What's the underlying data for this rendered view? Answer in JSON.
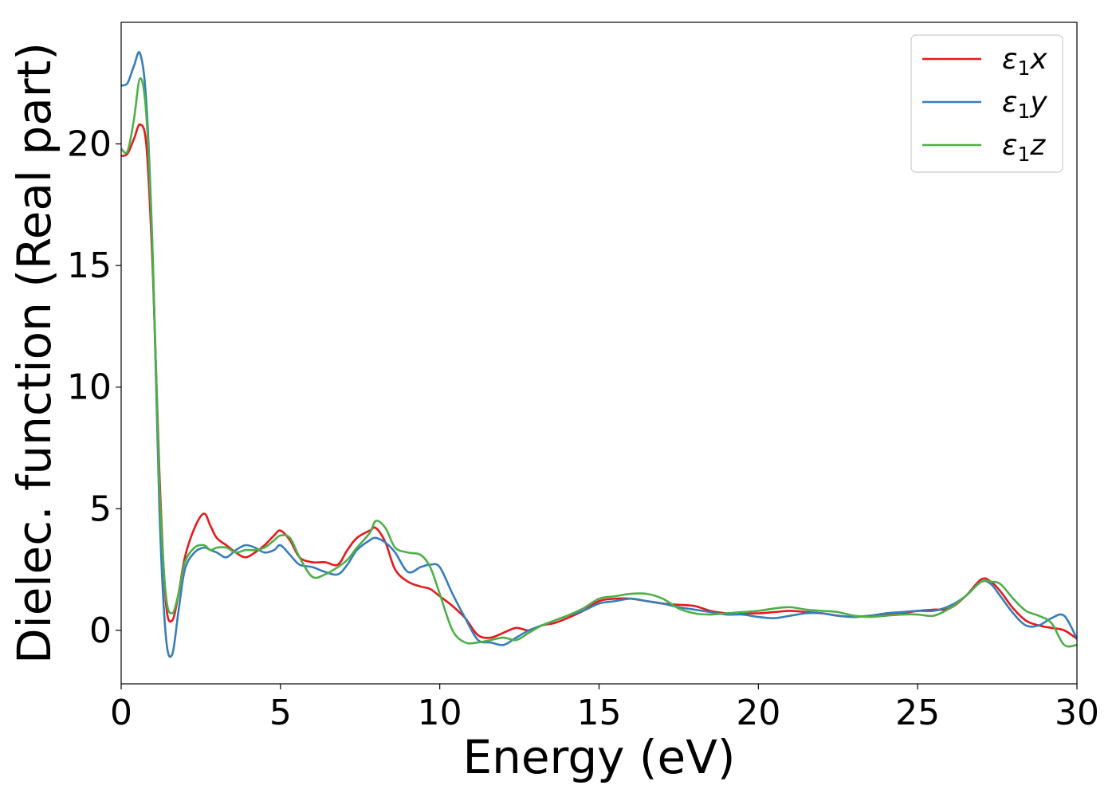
{
  "chart_data": {
    "type": "line",
    "title": "",
    "xlabel": "Energy (eV)",
    "ylabel": "Dielec. function (Real part)",
    "xlim": [
      0,
      30
    ],
    "ylim": [
      -2.2,
      25
    ],
    "xticks": [
      0,
      5,
      10,
      15,
      20,
      25,
      30
    ],
    "xtick_labels": [
      "0",
      "5",
      "10",
      "15",
      "20",
      "25",
      "30"
    ],
    "yticks": [
      0,
      5,
      10,
      15,
      20
    ],
    "ytick_labels": [
      "0",
      "5",
      "10",
      "15",
      "20"
    ],
    "grid": false,
    "legend_position": "top-right",
    "series": [
      {
        "name": "ε₁x",
        "legend_main": "ε",
        "legend_sub": "1",
        "legend_var": "x",
        "color": "#e41a1c",
        "x": [
          0,
          0.2,
          0.4,
          0.6,
          0.8,
          1.0,
          1.2,
          1.4,
          1.6,
          1.8,
          2.0,
          2.3,
          2.6,
          2.8,
          3.0,
          3.3,
          3.6,
          3.9,
          4.2,
          4.5,
          4.8,
          5.0,
          5.3,
          5.6,
          6.0,
          6.4,
          6.8,
          7.1,
          7.4,
          7.8,
          8.0,
          8.3,
          8.6,
          9.0,
          9.4,
          9.7,
          10.0,
          10.4,
          10.8,
          11.2,
          11.6,
          12.0,
          12.4,
          12.8,
          13.2,
          13.6,
          14.0,
          14.5,
          15.0,
          15.5,
          16.0,
          16.5,
          17.0,
          17.5,
          18.0,
          18.5,
          19.0,
          19.5,
          20.0,
          20.5,
          21.0,
          21.5,
          22.0,
          22.5,
          23.0,
          23.5,
          24.0,
          24.5,
          25.0,
          25.5,
          26.0,
          26.5,
          27.0,
          27.3,
          27.6,
          28.0,
          28.4,
          28.8,
          29.2,
          29.6,
          30.0
        ],
        "y": [
          19.5,
          19.6,
          20.2,
          20.8,
          19.8,
          14.5,
          6.5,
          1.2,
          0.4,
          1.5,
          3.0,
          4.2,
          4.8,
          4.3,
          3.8,
          3.5,
          3.2,
          3.0,
          3.2,
          3.5,
          3.9,
          4.1,
          3.7,
          3.0,
          2.8,
          2.8,
          2.7,
          3.3,
          3.8,
          4.1,
          4.2,
          3.6,
          2.5,
          2.0,
          1.8,
          1.7,
          1.4,
          1.0,
          0.5,
          -0.2,
          -0.3,
          -0.1,
          0.1,
          0.0,
          0.2,
          0.3,
          0.5,
          0.8,
          1.2,
          1.3,
          1.3,
          1.2,
          1.1,
          1.05,
          1.0,
          0.8,
          0.7,
          0.7,
          0.7,
          0.75,
          0.8,
          0.75,
          0.7,
          0.6,
          0.55,
          0.6,
          0.65,
          0.7,
          0.8,
          0.85,
          0.9,
          1.4,
          2.1,
          2.0,
          1.6,
          0.9,
          0.4,
          0.2,
          0.1,
          0.0,
          -0.35
        ]
      },
      {
        "name": "ε₁y",
        "legend_main": "ε",
        "legend_sub": "1",
        "legend_var": "y",
        "color": "#377eb8",
        "x": [
          0,
          0.2,
          0.4,
          0.6,
          0.8,
          1.0,
          1.2,
          1.4,
          1.6,
          1.8,
          2.0,
          2.3,
          2.6,
          2.8,
          3.0,
          3.3,
          3.6,
          3.9,
          4.2,
          4.5,
          4.8,
          5.0,
          5.3,
          5.6,
          6.0,
          6.4,
          6.8,
          7.1,
          7.4,
          7.8,
          8.0,
          8.3,
          8.6,
          9.0,
          9.4,
          9.7,
          10.0,
          10.4,
          10.8,
          11.2,
          11.6,
          12.0,
          12.4,
          12.8,
          13.2,
          13.6,
          14.0,
          14.5,
          15.0,
          15.5,
          16.0,
          16.5,
          17.0,
          17.5,
          18.0,
          18.5,
          19.0,
          19.5,
          20.0,
          20.5,
          21.0,
          21.5,
          22.0,
          22.5,
          23.0,
          23.5,
          24.0,
          24.5,
          25.0,
          25.5,
          26.0,
          26.5,
          27.0,
          27.3,
          27.6,
          28.0,
          28.4,
          28.8,
          29.2,
          29.6,
          30.0
        ],
        "y": [
          22.4,
          22.5,
          23.2,
          23.7,
          21.5,
          15.0,
          5.0,
          -0.2,
          -1.0,
          0.8,
          2.5,
          3.2,
          3.4,
          3.3,
          3.2,
          3.0,
          3.3,
          3.5,
          3.4,
          3.2,
          3.3,
          3.5,
          3.1,
          2.7,
          2.6,
          2.4,
          2.3,
          2.7,
          3.3,
          3.7,
          3.8,
          3.6,
          3.2,
          2.4,
          2.6,
          2.7,
          2.6,
          1.5,
          0.5,
          -0.4,
          -0.5,
          -0.6,
          -0.3,
          0.0,
          0.2,
          0.4,
          0.6,
          0.8,
          1.1,
          1.2,
          1.3,
          1.2,
          1.1,
          0.95,
          0.85,
          0.75,
          0.65,
          0.65,
          0.55,
          0.5,
          0.6,
          0.7,
          0.7,
          0.6,
          0.55,
          0.6,
          0.7,
          0.75,
          0.8,
          0.8,
          1.0,
          1.4,
          2.0,
          1.9,
          1.4,
          0.7,
          0.2,
          0.2,
          0.5,
          0.6,
          -0.35
        ]
      },
      {
        "name": "ε₁z",
        "legend_main": "ε",
        "legend_sub": "1",
        "legend_var": "z",
        "color": "#4daf4a",
        "x": [
          0,
          0.2,
          0.4,
          0.6,
          0.8,
          1.0,
          1.2,
          1.4,
          1.6,
          1.8,
          2.0,
          2.3,
          2.6,
          2.8,
          3.0,
          3.3,
          3.6,
          3.9,
          4.2,
          4.5,
          4.8,
          5.0,
          5.3,
          5.6,
          6.0,
          6.4,
          6.8,
          7.1,
          7.4,
          7.8,
          8.0,
          8.3,
          8.6,
          9.0,
          9.4,
          9.7,
          10.0,
          10.4,
          10.8,
          11.2,
          11.6,
          12.0,
          12.4,
          12.8,
          13.2,
          13.6,
          14.0,
          14.5,
          15.0,
          15.5,
          16.0,
          16.5,
          17.0,
          17.5,
          18.0,
          18.5,
          19.0,
          19.5,
          20.0,
          20.5,
          21.0,
          21.5,
          22.0,
          22.5,
          23.0,
          23.5,
          24.0,
          24.5,
          25.0,
          25.5,
          26.0,
          26.5,
          27.0,
          27.3,
          27.6,
          28.0,
          28.4,
          28.8,
          29.2,
          29.6,
          30.0
        ],
        "y": [
          19.8,
          19.7,
          21.0,
          22.7,
          21.0,
          15.0,
          6.0,
          1.5,
          0.7,
          1.5,
          2.8,
          3.4,
          3.5,
          3.3,
          3.4,
          3.4,
          3.2,
          3.3,
          3.3,
          3.4,
          3.7,
          3.9,
          3.8,
          3.0,
          2.2,
          2.3,
          2.6,
          2.9,
          3.4,
          4.0,
          4.5,
          4.2,
          3.4,
          3.2,
          3.1,
          2.6,
          1.5,
          0.0,
          -0.5,
          -0.5,
          -0.4,
          -0.3,
          -0.4,
          -0.1,
          0.2,
          0.4,
          0.6,
          0.9,
          1.3,
          1.4,
          1.5,
          1.5,
          1.3,
          0.9,
          0.7,
          0.65,
          0.7,
          0.75,
          0.8,
          0.9,
          0.95,
          0.85,
          0.8,
          0.75,
          0.6,
          0.55,
          0.6,
          0.65,
          0.65,
          0.6,
          0.9,
          1.4,
          2.0,
          2.0,
          1.9,
          1.3,
          0.8,
          0.6,
          0.3,
          -0.6,
          -0.6
        ]
      }
    ]
  }
}
